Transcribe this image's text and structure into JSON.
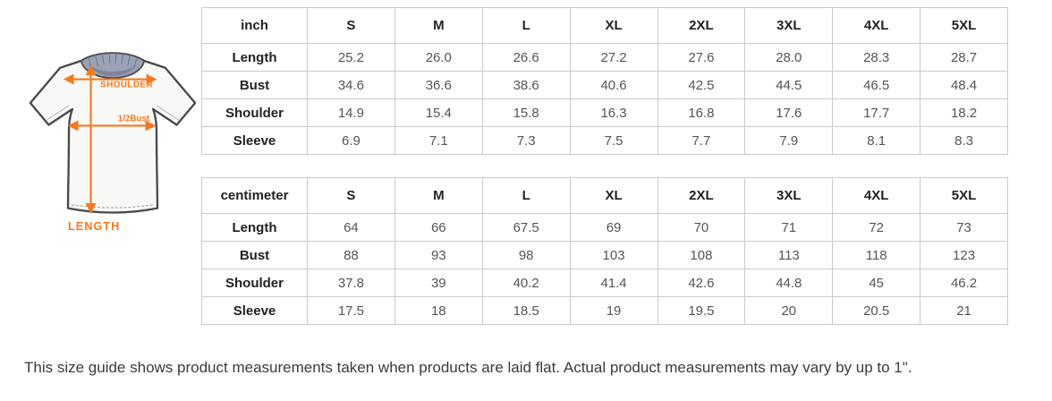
{
  "page": {
    "background": "#ffffff",
    "footer_note": "This size guide shows product measurements taken when products are laid flat. Actual product measurements may vary by up to 1\"."
  },
  "diagram": {
    "labels": {
      "shoulder": "SHOULDER",
      "half_bust": "1/2Bust",
      "length": "LENGTH"
    },
    "colors": {
      "arrow_orange": "#f5791f",
      "shirt_outline": "#4a4a4a",
      "shirt_fill": "#f8f8f6",
      "collar_fill": "#9aa2b6",
      "collar_inner": "#7e8499"
    }
  },
  "tables": [
    {
      "unit_label": "inch",
      "columns": [
        "S",
        "M",
        "L",
        "XL",
        "2XL",
        "3XL",
        "4XL",
        "5XL"
      ],
      "rows": [
        {
          "label": "Length",
          "values": [
            "25.2",
            "26.0",
            "26.6",
            "27.2",
            "27.6",
            "28.0",
            "28.3",
            "28.7"
          ]
        },
        {
          "label": "Bust",
          "values": [
            "34.6",
            "36.6",
            "38.6",
            "40.6",
            "42.5",
            "44.5",
            "46.5",
            "48.4"
          ]
        },
        {
          "label": "Shoulder",
          "values": [
            "14.9",
            "15.4",
            "15.8",
            "16.3",
            "16.8",
            "17.6",
            "17.7",
            "18.2"
          ]
        },
        {
          "label": "Sleeve",
          "values": [
            "6.9",
            "7.1",
            "7.3",
            "7.5",
            "7.7",
            "7.9",
            "8.1",
            "8.3"
          ]
        }
      ]
    },
    {
      "unit_label": "centimeter",
      "columns": [
        "S",
        "M",
        "L",
        "XL",
        "2XL",
        "3XL",
        "4XL",
        "5XL"
      ],
      "rows": [
        {
          "label": "Length",
          "values": [
            "64",
            "66",
            "67.5",
            "69",
            "70",
            "71",
            "72",
            "73"
          ]
        },
        {
          "label": "Bust",
          "values": [
            "88",
            "93",
            "98",
            "103",
            "108",
            "113",
            "118",
            "123"
          ]
        },
        {
          "label": "Shoulder",
          "values": [
            "37.8",
            "39",
            "40.2",
            "41.4",
            "42.6",
            "44.8",
            "45",
            "46.2"
          ]
        },
        {
          "label": "Sleeve",
          "values": [
            "17.5",
            "18",
            "18.5",
            "19",
            "19.5",
            "20",
            "20.5",
            "21"
          ]
        }
      ]
    }
  ]
}
